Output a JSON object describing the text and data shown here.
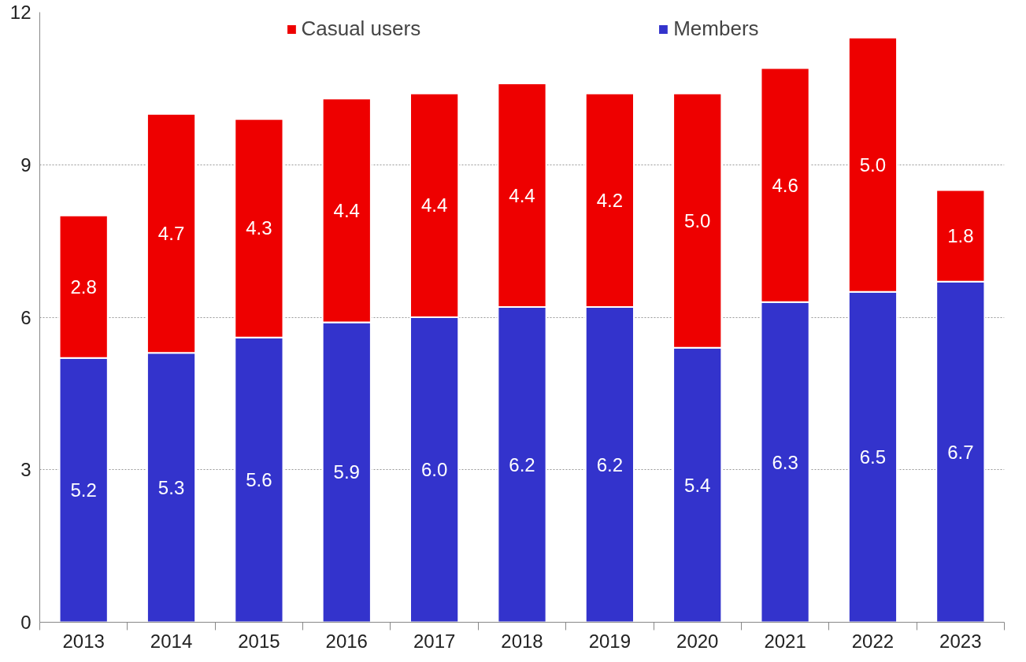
{
  "chart_data": {
    "type": "bar",
    "stacked": true,
    "categories": [
      "2013",
      "2014",
      "2015",
      "2016",
      "2017",
      "2018",
      "2019",
      "2020",
      "2021",
      "2022",
      "2023"
    ],
    "series": [
      {
        "name": "Members",
        "color": "#3333cc",
        "values": [
          5.2,
          5.3,
          5.6,
          5.9,
          6.0,
          6.2,
          6.2,
          5.4,
          6.3,
          6.5,
          6.7
        ],
        "value_labels": [
          "5.2",
          "5.3",
          "5.6",
          "5.9",
          "6.0",
          "6.2",
          "6.2",
          "5.4",
          "6.3",
          "6.5",
          "6.7"
        ]
      },
      {
        "name": "Casual users",
        "color": "#ee0000",
        "values": [
          2.8,
          4.7,
          4.3,
          4.4,
          4.4,
          4.4,
          4.2,
          5.0,
          4.6,
          5.0,
          1.8
        ],
        "value_labels": [
          "2.8",
          "4.7",
          "4.3",
          "4.4",
          "4.4",
          "4.4",
          "4.2",
          "5.0",
          "4.6",
          "5.0",
          "1.8"
        ]
      }
    ],
    "ylim": [
      0,
      12
    ],
    "yticks": [
      0,
      3,
      6,
      9,
      12
    ],
    "grid": "y",
    "legend": "top"
  }
}
